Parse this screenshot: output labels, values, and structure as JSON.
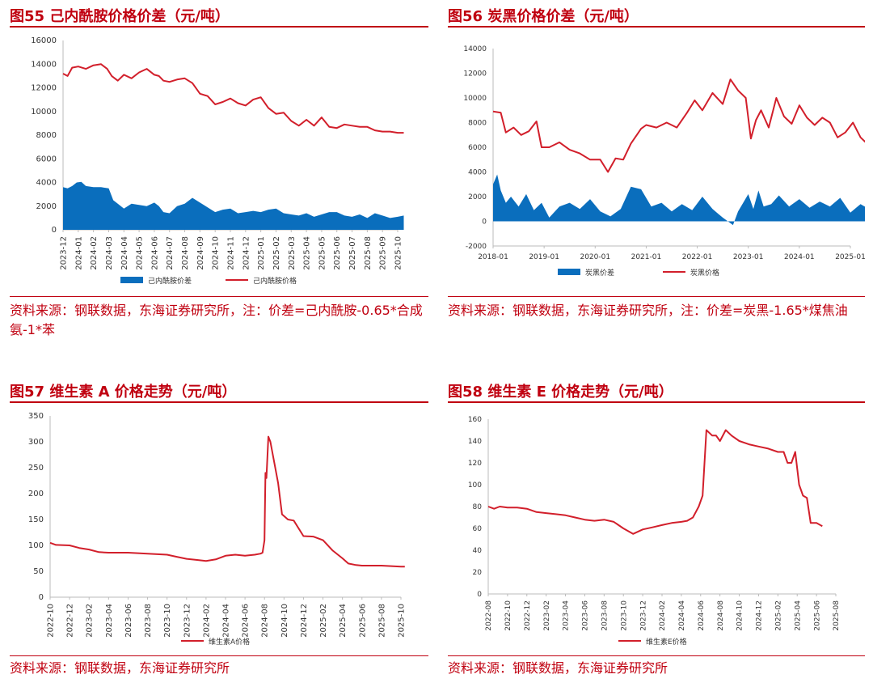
{
  "colors": {
    "accent": "#c00010",
    "line": "#d21f2b",
    "area": "#0a6ebd"
  },
  "charts": [
    {
      "title": "图55  己内酰胺价格价差（元/吨）",
      "source": "资料来源：钢联数据，东海证券研究所，注：价差=己内酰胺-0.65*合成氨-1*苯",
      "chart_data": {
        "type": "line",
        "yticks": [
          "0",
          "2000",
          "4000",
          "6000",
          "8000",
          "10000",
          "12000",
          "14000",
          "16000"
        ],
        "ylim": [
          0,
          16000
        ],
        "xticks": [
          "2023-12",
          "2024-01",
          "2024-02",
          "2024-03",
          "2024-04",
          "2024-05",
          "2024-06",
          "2024-07",
          "2024-08",
          "2024-09",
          "2024-10",
          "2024-11",
          "2024-12",
          "2025-01",
          "2025-02",
          "2025-03",
          "2025-04",
          "2025-05",
          "2025-06",
          "2025-07",
          "2025-08",
          "2025-09",
          "2025-10"
        ],
        "series": [
          {
            "name": "己内酰胺价差",
            "kind": "area",
            "x": [
              0,
              0.3,
              0.6,
              0.9,
              1.2,
              1.5,
              2,
              2.5,
              3,
              3.3,
              3.6,
              4,
              4.5,
              5,
              5.5,
              6,
              6.3,
              6.6,
              7,
              7.5,
              8,
              8.5,
              9,
              9.5,
              10,
              10.5,
              11,
              11.5,
              12,
              12.5,
              13,
              13.5,
              14,
              14.5,
              15,
              15.5,
              16,
              16.5,
              17,
              17.5,
              18,
              18.5,
              19,
              19.5,
              20,
              20.5,
              21,
              21.5,
              22,
              22.4
            ],
            "y": [
              3600,
              3500,
              3700,
              4000,
              4050,
              3700,
              3600,
              3600,
              3500,
              2500,
              2200,
              1800,
              2200,
              2100,
              2000,
              2300,
              2000,
              1500,
              1400,
              2000,
              2200,
              2700,
              2300,
              1900,
              1500,
              1700,
              1800,
              1400,
              1500,
              1600,
              1500,
              1700,
              1800,
              1400,
              1300,
              1200,
              1400,
              1100,
              1300,
              1500,
              1500,
              1200,
              1100,
              1300,
              1000,
              1400,
              1200,
              1000,
              1100,
              1200
            ]
          },
          {
            "name": "己内酰胺价格",
            "kind": "line",
            "x": [
              0,
              0.3,
              0.6,
              1,
              1.5,
              2,
              2.5,
              2.9,
              3.2,
              3.6,
              4,
              4.5,
              5,
              5.5,
              6,
              6.3,
              6.6,
              7,
              7.5,
              8,
              8.5,
              9,
              9.5,
              10,
              10.5,
              11,
              11.5,
              12,
              12.5,
              13,
              13.5,
              14,
              14.5,
              15,
              15.5,
              16,
              16.5,
              17,
              17.5,
              18,
              18.5,
              19,
              19.5,
              20,
              20.5,
              21,
              21.5,
              22,
              22.4
            ],
            "y": [
              13200,
              13000,
              13700,
              13800,
              13600,
              13900,
              14000,
              13600,
              13000,
              12600,
              13100,
              12800,
              13300,
              13600,
              13100,
              13000,
              12600,
              12500,
              12700,
              12800,
              12400,
              11500,
              11300,
              10600,
              10800,
              11100,
              10700,
              10500,
              11000,
              11200,
              10300,
              9800,
              9900,
              9200,
              8800,
              9300,
              8800,
              9500,
              8700,
              8600,
              8900,
              8800,
              8700,
              8700,
              8400,
              8300,
              8300,
              8200,
              8200
            ]
          }
        ]
      }
    },
    {
      "title": "图56  炭黑价格价差（元/吨）",
      "source": "资料来源：钢联数据，东海证券研究所，注：价差=炭黑-1.65*煤焦油",
      "chart_data": {
        "type": "line",
        "yticks": [
          "-2000",
          "0",
          "2000",
          "4000",
          "6000",
          "8000",
          "10000",
          "12000",
          "14000"
        ],
        "ylim": [
          -2000,
          14000
        ],
        "xticks": [
          "2018-01",
          "2019-01",
          "2020-01",
          "2021-01",
          "2022-01",
          "2023-01",
          "2024-01",
          "2025-01"
        ],
        "series": [
          {
            "name": "炭黑价差",
            "kind": "area",
            "x": [
              0,
              0.08,
              0.15,
              0.25,
              0.35,
              0.5,
              0.65,
              0.8,
              0.95,
              1.1,
              1.3,
              1.5,
              1.7,
              1.9,
              2.1,
              2.3,
              2.5,
              2.7,
              2.9,
              3.1,
              3.3,
              3.5,
              3.7,
              3.9,
              4.1,
              4.3,
              4.5,
              4.7,
              4.8,
              4.9,
              5.0,
              5.1,
              5.2,
              5.3,
              5.45,
              5.6,
              5.8,
              6.0,
              6.2,
              6.4,
              6.6,
              6.8,
              7.0,
              7.2,
              7.4,
              7.6,
              7.75
            ],
            "y": [
              3000,
              3800,
              2500,
              1500,
              2000,
              1200,
              2200,
              900,
              1500,
              300,
              1200,
              1500,
              1000,
              1800,
              800,
              400,
              1000,
              2800,
              2600,
              1200,
              1500,
              800,
              1400,
              900,
              2000,
              1000,
              300,
              -300,
              800,
              1500,
              2200,
              1000,
              2500,
              1200,
              1400,
              2100,
              1200,
              1800,
              1100,
              1600,
              1200,
              1900,
              700,
              1400,
              900,
              700,
              500
            ]
          },
          {
            "name": "炭黑价格",
            "kind": "line",
            "x": [
              0,
              0.15,
              0.25,
              0.4,
              0.55,
              0.7,
              0.85,
              0.95,
              1.1,
              1.3,
              1.5,
              1.7,
              1.9,
              2.1,
              2.25,
              2.4,
              2.55,
              2.7,
              2.9,
              3.0,
              3.2,
              3.4,
              3.6,
              3.8,
              3.95,
              4.1,
              4.3,
              4.5,
              4.65,
              4.8,
              4.95,
              5.05,
              5.15,
              5.25,
              5.4,
              5.55,
              5.7,
              5.85,
              6.0,
              6.15,
              6.3,
              6.45,
              6.6,
              6.75,
              6.9,
              7.05,
              7.2,
              7.35,
              7.5,
              7.65,
              7.75
            ],
            "y": [
              8900,
              8800,
              7200,
              7600,
              7000,
              7300,
              8100,
              6000,
              6000,
              6400,
              5800,
              5500,
              5000,
              5000,
              4000,
              5100,
              5000,
              6300,
              7500,
              7800,
              7600,
              8000,
              7600,
              8800,
              9800,
              9000,
              10400,
              9500,
              11500,
              10600,
              10000,
              6700,
              8200,
              9000,
              7600,
              10000,
              8500,
              7900,
              9400,
              8400,
              7800,
              8400,
              8000,
              6800,
              7200,
              8000,
              6800,
              6200,
              6500,
              6400,
              6100
            ]
          }
        ]
      }
    },
    {
      "title": "图57  维生素 A 价格走势（元/吨）",
      "source": "资料来源：钢联数据，东海证券研究所",
      "chart_data": {
        "type": "line",
        "yticks": [
          "0",
          "50",
          "100",
          "150",
          "200",
          "250",
          "300",
          "350"
        ],
        "ylim": [
          0,
          350
        ],
        "xticks": [
          "2022-10",
          "2022-12",
          "2023-02",
          "2023-04",
          "2023-06",
          "2023-08",
          "2023-10",
          "2023-12",
          "2024-02",
          "2024-04",
          "2024-06",
          "2024-08",
          "2024-10",
          "2024-12",
          "2025-02",
          "2025-04",
          "2025-06",
          "2025-08",
          "2025-10"
        ],
        "series": [
          {
            "name": "维生素A价格",
            "kind": "line",
            "x": [
              0,
              0.3,
              1,
              1.5,
              2,
              2.5,
              3,
              4,
              5,
              6,
              6.5,
              7,
              7.5,
              8,
              8.5,
              9,
              9.5,
              10,
              10.5,
              10.8,
              10.9,
              11,
              11.05,
              11.1,
              11.2,
              11.3,
              11.5,
              11.7,
              11.9,
              12.2,
              12.5,
              13,
              13.5,
              14,
              14.5,
              15,
              15.3,
              15.7,
              16,
              17,
              17.5,
              18,
              18.2
            ],
            "y": [
              105,
              101,
              100,
              95,
              92,
              87,
              86,
              86,
              84,
              82,
              78,
              74,
              72,
              70,
              73,
              80,
              82,
              80,
              82,
              84,
              86,
              110,
              240,
              230,
              310,
              300,
              260,
              220,
              160,
              150,
              148,
              118,
              117,
              110,
              90,
              75,
              65,
              62,
              61,
              61,
              60,
              59,
              59
            ]
          }
        ]
      }
    },
    {
      "title": "图58  维生素 E 价格走势（元/吨）",
      "source": "资料来源：钢联数据，东海证券研究所",
      "chart_data": {
        "type": "line",
        "yticks": [
          "0",
          "20",
          "40",
          "60",
          "80",
          "100",
          "120",
          "140",
          "160"
        ],
        "ylim": [
          0,
          160
        ],
        "xticks": [
          "2022-08",
          "2022-10",
          "2022-12",
          "2023-02",
          "2023-04",
          "2023-06",
          "2023-08",
          "2023-10",
          "2023-12",
          "2024-02",
          "2024-04",
          "2024-06",
          "2024-08",
          "2024-10",
          "2024-12",
          "2025-02",
          "2025-04",
          "2025-06",
          "2025-08"
        ],
        "series": [
          {
            "name": "维生素E价格",
            "kind": "line",
            "x": [
              0,
              0.3,
              0.6,
              1,
              1.5,
              2,
              2.5,
              3,
              3.5,
              4,
              4.5,
              5,
              5.5,
              6,
              6.5,
              7,
              7.5,
              8,
              8.5,
              9,
              9.5,
              10,
              10.3,
              10.6,
              10.9,
              11.1,
              11.3,
              11.6,
              11.8,
              12,
              12.3,
              12.6,
              13,
              13.5,
              14,
              14.5,
              15,
              15.3,
              15.5,
              15.7,
              15.9,
              16.1,
              16.3,
              16.5,
              16.7,
              17,
              17.3
            ],
            "y": [
              80,
              78,
              80,
              79,
              79,
              78,
              75,
              74,
              73,
              72,
              70,
              68,
              67,
              68,
              66,
              60,
              55,
              59,
              61,
              63,
              65,
              66,
              67,
              70,
              80,
              90,
              150,
              145,
              145,
              140,
              150,
              145,
              140,
              137,
              135,
              133,
              130,
              130,
              120,
              120,
              130,
              100,
              90,
              88,
              65,
              65,
              62
            ]
          }
        ]
      }
    }
  ]
}
